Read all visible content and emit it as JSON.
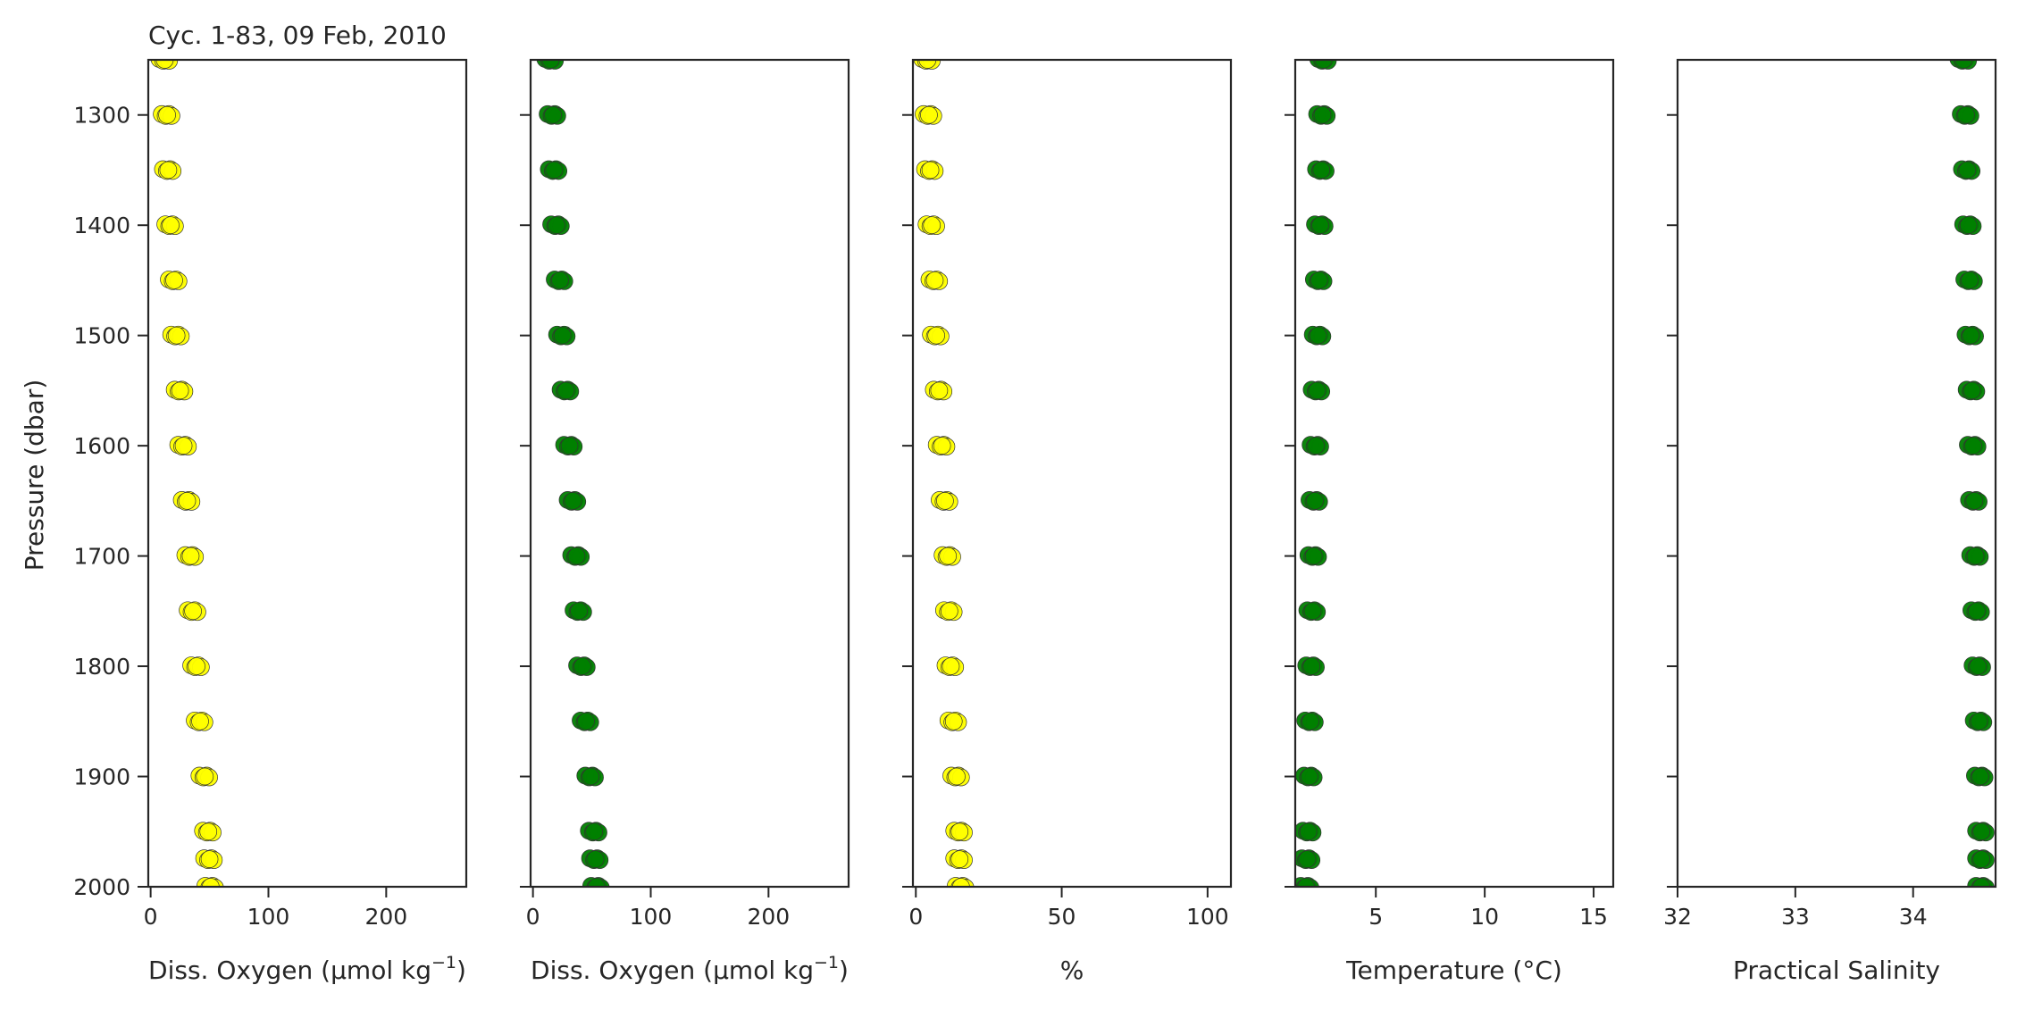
{
  "chart_data": {
    "type": "scatter",
    "title": "Cyc. 1-83, 09 Feb, 2010",
    "ylabel": "Pressure (dbar)",
    "ylim": [
      1250,
      2000
    ],
    "y_inverted": true,
    "y_ticks": [
      1300,
      1400,
      1500,
      1600,
      1700,
      1800,
      1900,
      2000
    ],
    "grid": false,
    "panels": [
      {
        "xlabel_main": "Diss. Oxygen (µmol kg",
        "xlabel_sup": "−1",
        "xlabel_end": ")",
        "xlim": [
          -2,
          268
        ],
        "x_ticks": [
          0,
          100,
          200
        ],
        "color": "#ffff00",
        "points": [
          [
            12,
            1250
          ],
          [
            14,
            1300
          ],
          [
            15,
            1350
          ],
          [
            17,
            1400
          ],
          [
            20,
            1450
          ],
          [
            22,
            1500
          ],
          [
            25,
            1550
          ],
          [
            28,
            1600
          ],
          [
            31,
            1650
          ],
          [
            34,
            1700
          ],
          [
            36,
            1750
          ],
          [
            39,
            1800
          ],
          [
            42,
            1850
          ],
          [
            46,
            1900
          ],
          [
            49,
            1950
          ],
          [
            50,
            1975
          ],
          [
            51,
            2000
          ]
        ]
      },
      {
        "xlabel_main": "Diss. Oxygen (µmol kg",
        "xlabel_sup": "−1",
        "xlabel_end": ")",
        "xlim": [
          -2,
          268
        ],
        "x_ticks": [
          0,
          100,
          200
        ],
        "color": "#008000",
        "points": [
          [
            15,
            1250
          ],
          [
            17,
            1300
          ],
          [
            18,
            1350
          ],
          [
            20,
            1400
          ],
          [
            23,
            1450
          ],
          [
            25,
            1500
          ],
          [
            28,
            1550
          ],
          [
            31,
            1600
          ],
          [
            34,
            1650
          ],
          [
            37,
            1700
          ],
          [
            39,
            1750
          ],
          [
            42,
            1800
          ],
          [
            45,
            1850
          ],
          [
            49,
            1900
          ],
          [
            52,
            1950
          ],
          [
            53,
            1975
          ],
          [
            54,
            2000
          ]
        ]
      },
      {
        "xlabel_main": "%",
        "xlabel_sup": "",
        "xlabel_end": "",
        "xlim": [
          -1,
          108
        ],
        "x_ticks": [
          0,
          50,
          100
        ],
        "color": "#ffff00",
        "points": [
          [
            4,
            1250
          ],
          [
            4.5,
            1300
          ],
          [
            5,
            1350
          ],
          [
            5.5,
            1400
          ],
          [
            6.5,
            1450
          ],
          [
            7,
            1500
          ],
          [
            8,
            1550
          ],
          [
            9,
            1600
          ],
          [
            10,
            1650
          ],
          [
            11,
            1700
          ],
          [
            11.5,
            1750
          ],
          [
            12,
            1800
          ],
          [
            13,
            1850
          ],
          [
            14,
            1900
          ],
          [
            15,
            1950
          ],
          [
            15,
            1975
          ],
          [
            15.5,
            2000
          ]
        ]
      },
      {
        "xlabel_main": "Temperature (°C)",
        "xlabel_sup": "",
        "xlabel_end": "",
        "xlim": [
          1.3,
          15.9
        ],
        "x_ticks": [
          5,
          10,
          15
        ],
        "color": "#008000",
        "points": [
          [
            2.6,
            1250
          ],
          [
            2.55,
            1300
          ],
          [
            2.5,
            1350
          ],
          [
            2.45,
            1400
          ],
          [
            2.4,
            1450
          ],
          [
            2.35,
            1500
          ],
          [
            2.3,
            1550
          ],
          [
            2.25,
            1600
          ],
          [
            2.2,
            1650
          ],
          [
            2.15,
            1700
          ],
          [
            2.1,
            1750
          ],
          [
            2.05,
            1800
          ],
          [
            2.0,
            1850
          ],
          [
            1.95,
            1900
          ],
          [
            1.9,
            1950
          ],
          [
            1.85,
            1975
          ],
          [
            1.8,
            2000
          ]
        ]
      },
      {
        "xlabel_main": "Practical Salinity",
        "xlabel_sup": "",
        "xlabel_end": "",
        "xlim": [
          32,
          34.7
        ],
        "x_ticks": [
          32,
          33,
          34
        ],
        "color": "#008000",
        "points": [
          [
            34.43,
            1250
          ],
          [
            34.45,
            1300
          ],
          [
            34.46,
            1350
          ],
          [
            34.47,
            1400
          ],
          [
            34.48,
            1450
          ],
          [
            34.49,
            1500
          ],
          [
            34.5,
            1550
          ],
          [
            34.51,
            1600
          ],
          [
            34.52,
            1650
          ],
          [
            34.53,
            1700
          ],
          [
            34.54,
            1750
          ],
          [
            34.55,
            1800
          ],
          [
            34.56,
            1850
          ],
          [
            34.57,
            1900
          ],
          [
            34.58,
            1950
          ],
          [
            34.58,
            1975
          ],
          [
            34.58,
            2000
          ]
        ]
      }
    ]
  }
}
